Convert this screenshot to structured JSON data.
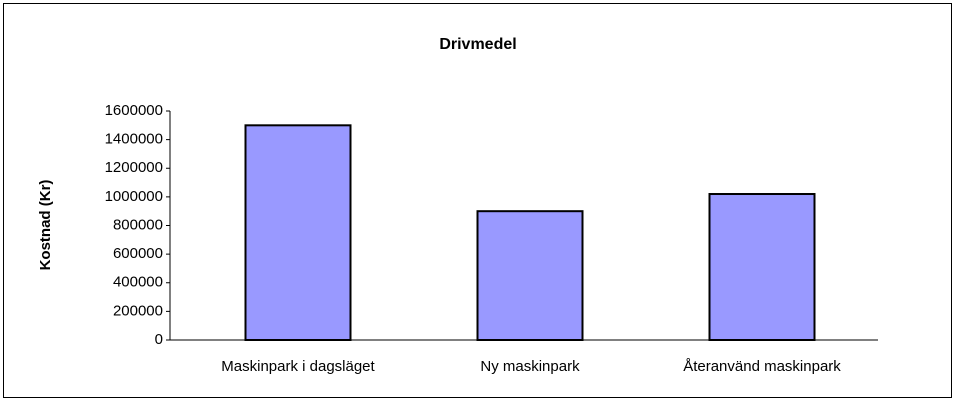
{
  "chart_data": {
    "type": "bar",
    "title": "Drivmedel",
    "ylabel": "Kostnad (Kr)",
    "categories": [
      "Maskinpark i dagsläget",
      "Ny maskinpark",
      "Återanvänd maskinpark"
    ],
    "values": [
      1500000,
      900000,
      1020000
    ],
    "color": "#9999ff",
    "ylim": [
      0,
      1600000
    ],
    "yticks": [
      0,
      200000,
      400000,
      600000,
      800000,
      1000000,
      1200000,
      1400000,
      1600000
    ],
    "grid": false
  }
}
